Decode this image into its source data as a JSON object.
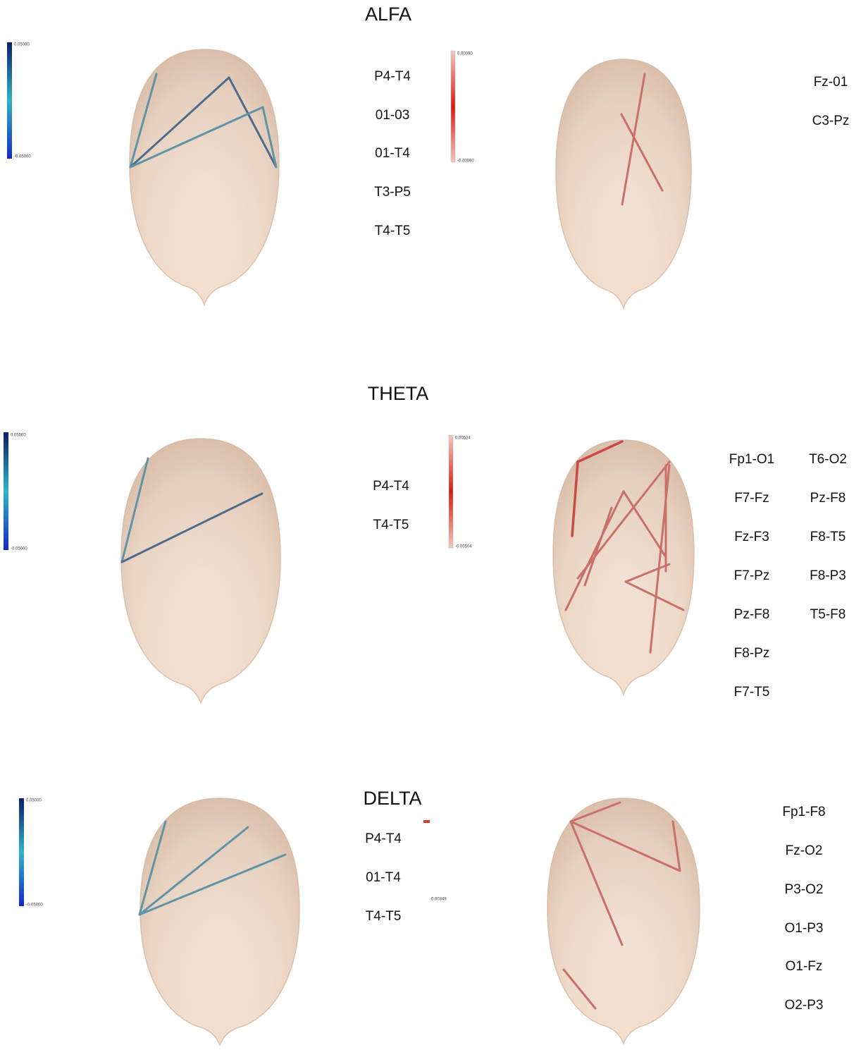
{
  "sections": [
    {
      "title": "ALFA",
      "left_scale": {
        "max": "0.05000",
        "min": "-0.05000"
      },
      "left_labels": [
        "P4-T4",
        "01-03",
        "01-T4",
        "T3-P5",
        "T4-T5"
      ],
      "right_scale": {
        "max": "0.00090",
        "min": "-0.00090"
      },
      "right_labels": [
        [
          "Fz-01",
          "C3-Pz"
        ]
      ]
    },
    {
      "title": "THETA",
      "left_scale": {
        "max": "0.05000",
        "min": "-0.05000"
      },
      "left_labels": [
        "P4-T4",
        "T4-T5"
      ],
      "right_scale": {
        "max": "0.00524",
        "min": "-0.00504"
      },
      "right_labels": [
        [
          "Fp1-O1",
          "F7-Fz",
          "Fz-F3",
          "F7-Pz",
          "Pz-F8",
          "F8-Pz",
          "F7-T5"
        ],
        [
          "T6-O2",
          "Pz-F8",
          "F8-T5",
          "F8-P3",
          "T5-F8"
        ]
      ]
    },
    {
      "title": "DELTA",
      "left_scale": {
        "max": "0.05000",
        "min": "-0.05000"
      },
      "left_labels": [
        "P4-T4",
        "01-T4",
        "T4-T5"
      ],
      "right_scale": {
        "min": "-0.00349"
      },
      "right_labels": [
        [
          "Fp1-F8",
          "Fz-O2",
          "P3-O2",
          "O1-P3",
          "O1-Fz",
          "O2-P3"
        ]
      ]
    }
  ]
}
